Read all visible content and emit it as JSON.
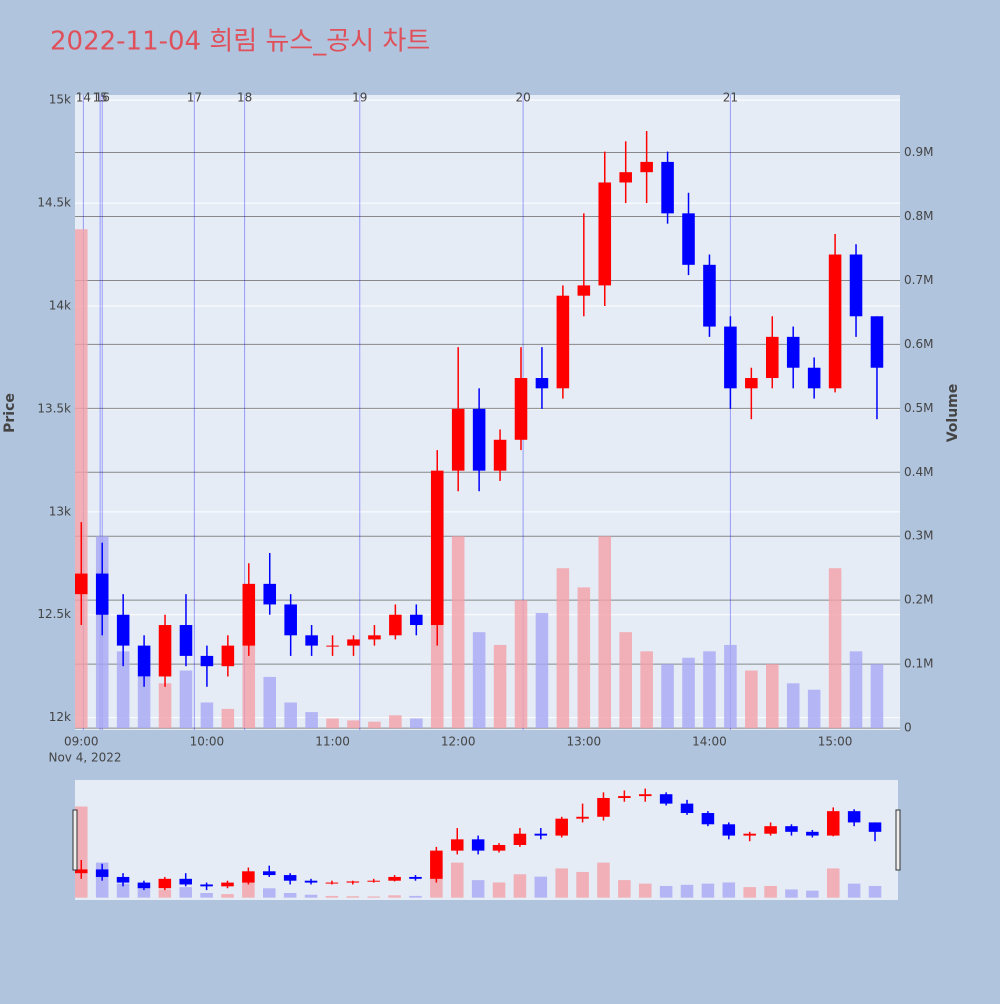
{
  "chart_data": {
    "type": "candlestick",
    "title": "2022-11-04 희림 뉴스_공시 차트",
    "ylabel": "Price",
    "y2label": "Volume",
    "date_label": "Nov 4, 2022",
    "x": [
      "09:00",
      "09:10",
      "09:20",
      "09:30",
      "09:40",
      "09:50",
      "10:00",
      "10:10",
      "10:20",
      "10:30",
      "10:40",
      "10:50",
      "11:00",
      "11:10",
      "11:20",
      "11:30",
      "11:40",
      "11:50",
      "12:00",
      "12:10",
      "12:20",
      "12:30",
      "12:40",
      "12:50",
      "13:00",
      "13:10",
      "13:20",
      "13:30",
      "13:40",
      "13:50",
      "14:00",
      "14:10",
      "14:20",
      "14:30",
      "14:40",
      "14:50",
      "15:00",
      "15:10",
      "15:20"
    ],
    "open": [
      12600,
      12700,
      12500,
      12350,
      12200,
      12450,
      12300,
      12250,
      12350,
      12650,
      12550,
      12400,
      12350,
      12350,
      12380,
      12400,
      12500,
      12450,
      13200,
      13500,
      13200,
      13350,
      13650,
      13600,
      14050,
      14100,
      14600,
      14650,
      14700,
      14450,
      14200,
      13900,
      13600,
      13650,
      13850,
      13700,
      13600,
      14250,
      13950
    ],
    "high": [
      12950,
      12850,
      12600,
      12400,
      12500,
      12600,
      12350,
      12400,
      12750,
      12800,
      12600,
      12450,
      12400,
      12400,
      12450,
      12550,
      12550,
      13300,
      13800,
      13600,
      13400,
      13800,
      13800,
      14100,
      14450,
      14750,
      14800,
      14850,
      14750,
      14550,
      14250,
      13950,
      13700,
      13950,
      13900,
      13750,
      14350,
      14300,
      13950
    ],
    "low": [
      12450,
      12400,
      12250,
      12150,
      12150,
      12250,
      12150,
      12200,
      12300,
      12500,
      12300,
      12300,
      12300,
      12300,
      12350,
      12380,
      12400,
      12350,
      13100,
      13100,
      13150,
      13300,
      13500,
      13550,
      13950,
      14000,
      14500,
      14500,
      14400,
      14150,
      13850,
      13500,
      13450,
      13600,
      13600,
      13550,
      13580,
      13850,
      13450
    ],
    "close": [
      12700,
      12500,
      12350,
      12200,
      12450,
      12300,
      12250,
      12350,
      12650,
      12550,
      12400,
      12350,
      12350,
      12380,
      12400,
      12500,
      12450,
      13200,
      13500,
      13200,
      13350,
      13650,
      13600,
      14050,
      14100,
      14600,
      14650,
      14700,
      14450,
      14200,
      13900,
      13600,
      13650,
      13850,
      13700,
      13600,
      14250,
      13950,
      13700
    ],
    "volume": [
      780000,
      300000,
      120000,
      80000,
      70000,
      90000,
      40000,
      30000,
      150000,
      80000,
      40000,
      25000,
      15000,
      12000,
      10000,
      20000,
      15000,
      350000,
      300000,
      150000,
      130000,
      200000,
      180000,
      250000,
      220000,
      300000,
      150000,
      120000,
      100000,
      110000,
      120000,
      130000,
      90000,
      100000,
      70000,
      60000,
      250000,
      120000,
      100000
    ],
    "increasing_color": "#ff0000",
    "decreasing_color": "#0000ff",
    "increasing_volume_color": "#f4a0a8",
    "decreasing_volume_color": "#a8a8f4",
    "xlim": [
      "08:57",
      "15:31"
    ],
    "xticks": [
      "09:00",
      "10:00",
      "11:00",
      "12:00",
      "13:00",
      "14:00",
      "15:00"
    ],
    "ylim": [
      11940,
      15025
    ],
    "yticks": [
      {
        "value": 12000,
        "label": "12k"
      },
      {
        "value": 12500,
        "label": "12.5k"
      },
      {
        "value": 13000,
        "label": "13k"
      },
      {
        "value": 13500,
        "label": "13.5k"
      },
      {
        "value": 14000,
        "label": "14k"
      },
      {
        "value": 14500,
        "label": "14.5k"
      },
      {
        "value": 15000,
        "label": "15k"
      }
    ],
    "y2lim": [
      -3000,
      990000
    ],
    "y2ticks": [
      0,
      {
        "value": 100000,
        "label": "0.1M"
      },
      {
        "value": 200000,
        "label": "0.2M"
      },
      {
        "value": 300000,
        "label": "0.3M"
      },
      {
        "value": 400000,
        "label": "0.4M"
      },
      {
        "value": 500000,
        "label": "0.5M"
      },
      {
        "value": 600000,
        "label": "0.6M"
      },
      {
        "value": 700000,
        "label": "0.7M"
      },
      {
        "value": 800000,
        "label": "0.8M"
      },
      {
        "value": 900000,
        "label": "0.9M"
      }
    ],
    "annotations": [
      {
        "x": "09:01",
        "label": "14"
      },
      {
        "x": "09:09",
        "label": "15"
      },
      {
        "x": "09:10",
        "label": "16"
      },
      {
        "x": "09:54",
        "label": "17"
      },
      {
        "x": "10:18",
        "label": "18"
      },
      {
        "x": "11:13",
        "label": "19"
      },
      {
        "x": "12:31",
        "label": "20"
      },
      {
        "x": "14:10",
        "label": "21"
      }
    ],
    "rangeslider": true
  }
}
